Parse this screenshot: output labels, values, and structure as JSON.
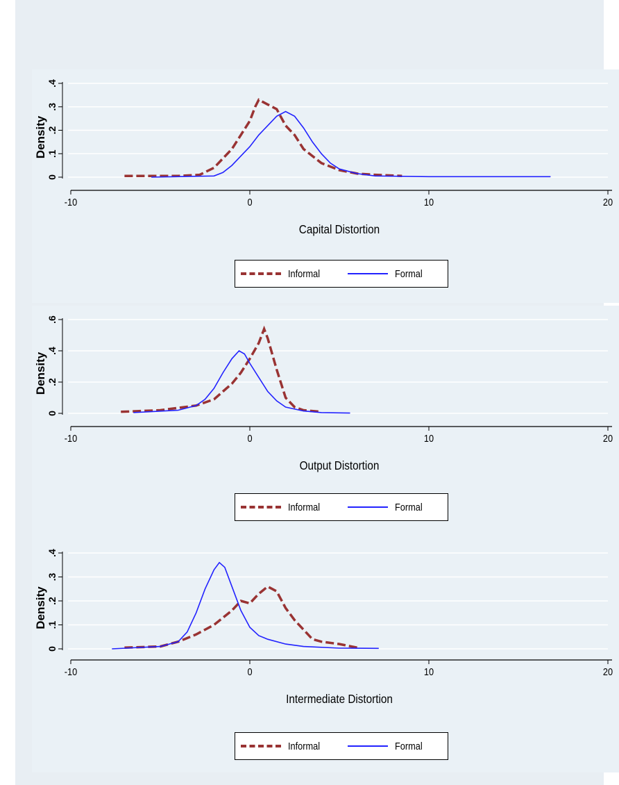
{
  "colors": {
    "informal": "#993333",
    "formal": "#2222ff",
    "background": "#eaf1f6",
    "grid": "#ffffff"
  },
  "chart_data": [
    {
      "type": "line",
      "xlabel": "Capital Distortion",
      "ylabel": "Density",
      "xlim": [
        -10,
        20
      ],
      "ylim": [
        0,
        0.4
      ],
      "xticks": [
        "-10",
        "0",
        "10",
        "20"
      ],
      "yticks": [
        "0",
        ".1",
        ".2",
        ".3",
        ".4"
      ],
      "legend_position": "bottom",
      "series": [
        {
          "name": "Informal",
          "style": "dashed",
          "x": [
            -7,
            -4,
            -2.8,
            -2,
            -1.5,
            -1,
            -0.5,
            0,
            0.3,
            0.5,
            1,
            1.5,
            2,
            2.5,
            3,
            4,
            5,
            6,
            7,
            8.5
          ],
          "y": [
            0.005,
            0.005,
            0.01,
            0.04,
            0.08,
            0.12,
            0.18,
            0.24,
            0.3,
            0.33,
            0.31,
            0.29,
            0.22,
            0.18,
            0.12,
            0.06,
            0.03,
            0.015,
            0.01,
            0.005
          ]
        },
        {
          "name": "Formal",
          "style": "solid",
          "x": [
            -5.5,
            -2,
            -1.5,
            -1,
            -0.5,
            0,
            0.5,
            1,
            1.5,
            2,
            2.5,
            3,
            3.5,
            4,
            4.5,
            5,
            6,
            7,
            10,
            16.8
          ],
          "y": [
            0,
            0.005,
            0.02,
            0.05,
            0.09,
            0.13,
            0.18,
            0.22,
            0.26,
            0.28,
            0.26,
            0.21,
            0.15,
            0.1,
            0.06,
            0.035,
            0.015,
            0.005,
            0.002,
            0.002
          ]
        }
      ]
    },
    {
      "type": "line",
      "xlabel": "Output Distortion",
      "ylabel": "Density",
      "xlim": [
        -10,
        20
      ],
      "ylim": [
        0,
        0.6
      ],
      "xticks": [
        "-10",
        "0",
        "10",
        "20"
      ],
      "yticks": [
        "0",
        ".2",
        ".4",
        ".6"
      ],
      "legend_position": "bottom",
      "series": [
        {
          "name": "Informal",
          "style": "dashed",
          "x": [
            -7.2,
            -5,
            -4,
            -3,
            -2,
            -1.5,
            -1,
            -0.5,
            0,
            0.5,
            0.8,
            1,
            1.5,
            2,
            2.5,
            3,
            4
          ],
          "y": [
            0.01,
            0.02,
            0.035,
            0.05,
            0.09,
            0.14,
            0.19,
            0.26,
            0.35,
            0.45,
            0.54,
            0.48,
            0.28,
            0.1,
            0.04,
            0.02,
            0.01
          ]
        },
        {
          "name": "Formal",
          "style": "solid",
          "x": [
            -6.5,
            -4,
            -3,
            -2.5,
            -2,
            -1.5,
            -1,
            -0.6,
            -0.3,
            0,
            0.5,
            1,
            1.5,
            2,
            3,
            4,
            5.6
          ],
          "y": [
            0.005,
            0.02,
            0.05,
            0.09,
            0.16,
            0.26,
            0.35,
            0.4,
            0.38,
            0.32,
            0.23,
            0.14,
            0.08,
            0.04,
            0.015,
            0.005,
            0.002
          ]
        }
      ]
    },
    {
      "type": "line",
      "xlabel": "Intermediate Distortion",
      "ylabel": "Density",
      "xlim": [
        -10,
        20
      ],
      "ylim": [
        0,
        0.4
      ],
      "xticks": [
        "-10",
        "0",
        "10",
        "20"
      ],
      "yticks": [
        "0",
        ".1",
        ".2",
        ".3",
        ".4"
      ],
      "legend_position": "bottom",
      "series": [
        {
          "name": "Informal",
          "style": "dashed",
          "x": [
            -7,
            -5,
            -4,
            -3,
            -2,
            -1,
            -0.5,
            0,
            0.5,
            1,
            1.5,
            2,
            2.5,
            3,
            3.5,
            4,
            5,
            6
          ],
          "y": [
            0.005,
            0.01,
            0.03,
            0.06,
            0.1,
            0.16,
            0.2,
            0.19,
            0.23,
            0.26,
            0.24,
            0.17,
            0.12,
            0.08,
            0.04,
            0.03,
            0.02,
            0.005
          ]
        },
        {
          "name": "Formal",
          "style": "solid",
          "x": [
            -7.7,
            -5,
            -4,
            -3.5,
            -3,
            -2.5,
            -2,
            -1.7,
            -1.4,
            -1,
            -0.5,
            0,
            0.5,
            1,
            2,
            3,
            5,
            7.2
          ],
          "y": [
            0,
            0.01,
            0.03,
            0.07,
            0.15,
            0.25,
            0.33,
            0.36,
            0.34,
            0.26,
            0.16,
            0.09,
            0.055,
            0.04,
            0.02,
            0.01,
            0.003,
            0.002
          ]
        }
      ]
    }
  ]
}
